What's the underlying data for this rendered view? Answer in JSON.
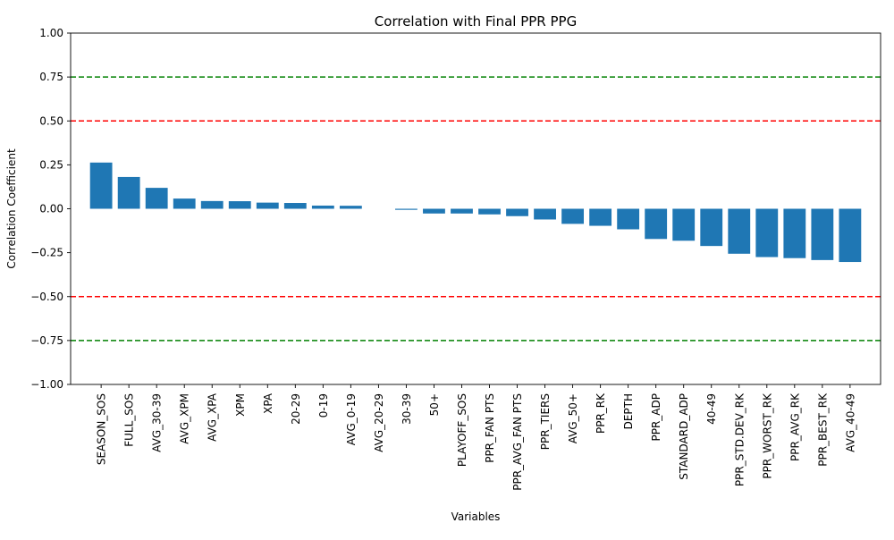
{
  "chart_data": {
    "type": "bar",
    "title": "Correlation with Final PPR PPG",
    "xlabel": "Variables",
    "ylabel": "Correlation Coefficient",
    "ylim": [
      -1.0,
      1.0
    ],
    "yticks": [
      "−1.00",
      "−0.75",
      "−0.50",
      "−0.25",
      "0.00",
      "0.25",
      "0.50",
      "0.75",
      "1.00"
    ],
    "ytick_values": [
      -1.0,
      -0.75,
      -0.5,
      -0.25,
      0.0,
      0.25,
      0.5,
      0.75,
      1.0
    ],
    "grid": false,
    "categories": [
      "SEASON_SOS",
      "FULL_SOS",
      "AVG_30-39",
      "AVG_XPM",
      "AVG_XPA",
      "XPM",
      "XPA",
      "20-29",
      "0-19",
      "AVG_0-19",
      "AVG_20-29",
      "30-39",
      "50+",
      "PLAYOFF_SOS",
      "PPR_FAN PTS",
      "PPR_AVG_FAN PTS",
      "PPR_TIERS",
      "AVG_50+",
      "PPR_RK",
      "DEPTH",
      "PPR_ADP",
      "STANDARD_ADP",
      "40-49",
      "PPR_STD.DEV_RK",
      "PPR_WORST_RK",
      "PPR_AVG_RK",
      "PPR_BEST_RK",
      "AVG_40-49"
    ],
    "values": [
      0.263,
      0.181,
      0.119,
      0.058,
      0.044,
      0.043,
      0.035,
      0.033,
      0.018,
      0.017,
      0.0,
      -0.006,
      -0.027,
      -0.027,
      -0.032,
      -0.042,
      -0.061,
      -0.086,
      -0.097,
      -0.117,
      -0.172,
      -0.182,
      -0.212,
      -0.256,
      -0.275,
      -0.281,
      -0.292,
      -0.303
    ],
    "bar_color": "#1f77b4",
    "reference_lines": [
      {
        "value": 0.75,
        "color": "#008000",
        "style": "dashed"
      },
      {
        "value": 0.5,
        "color": "#ff0000",
        "style": "dashed"
      },
      {
        "value": -0.5,
        "color": "#ff0000",
        "style": "dashed"
      },
      {
        "value": -0.75,
        "color": "#008000",
        "style": "dashed"
      }
    ]
  }
}
